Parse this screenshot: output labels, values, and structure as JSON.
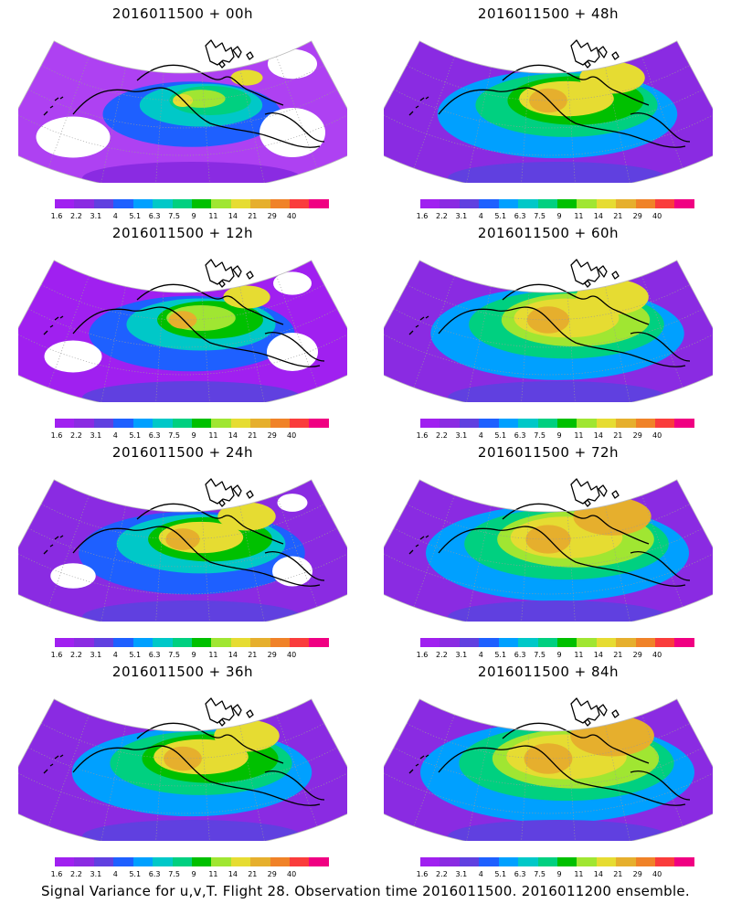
{
  "panels": [
    {
      "title": "2016011500 + 00h",
      "intensity": 0.1,
      "col": 0,
      "row": 0
    },
    {
      "title": "2016011500 + 12h",
      "intensity": 0.3,
      "col": 0,
      "row": 1
    },
    {
      "title": "2016011500 + 24h",
      "intensity": 0.45,
      "col": 0,
      "row": 2
    },
    {
      "title": "2016011500 + 36h",
      "intensity": 0.55,
      "col": 0,
      "row": 3
    },
    {
      "title": "2016011500 + 48h",
      "intensity": 0.55,
      "col": 1,
      "row": 0
    },
    {
      "title": "2016011500 + 60h",
      "intensity": 0.65,
      "col": 1,
      "row": 1
    },
    {
      "title": "2016011500 + 72h",
      "intensity": 0.72,
      "col": 1,
      "row": 2
    },
    {
      "title": "2016011500 + 84h",
      "intensity": 0.8,
      "col": 1,
      "row": 3
    }
  ],
  "colorbar": {
    "labels": [
      "1.6",
      "2.2",
      "3.1",
      "4",
      "5.1",
      "6.3",
      "7.5",
      "9",
      "11",
      "14",
      "21",
      "29",
      "40"
    ],
    "colors": [
      "#a020f0",
      "#8a2be2",
      "#6040e0",
      "#1e60ff",
      "#00a0ff",
      "#00c8c8",
      "#00d080",
      "#00c000",
      "#a0e632",
      "#e6dc32",
      "#e6af2d",
      "#f08228",
      "#fa3c3c",
      "#f00082"
    ]
  },
  "caption": "Signal Variance for u,v,T. Flight 28. Observation time 2016011500. 2016011200 ensemble."
}
